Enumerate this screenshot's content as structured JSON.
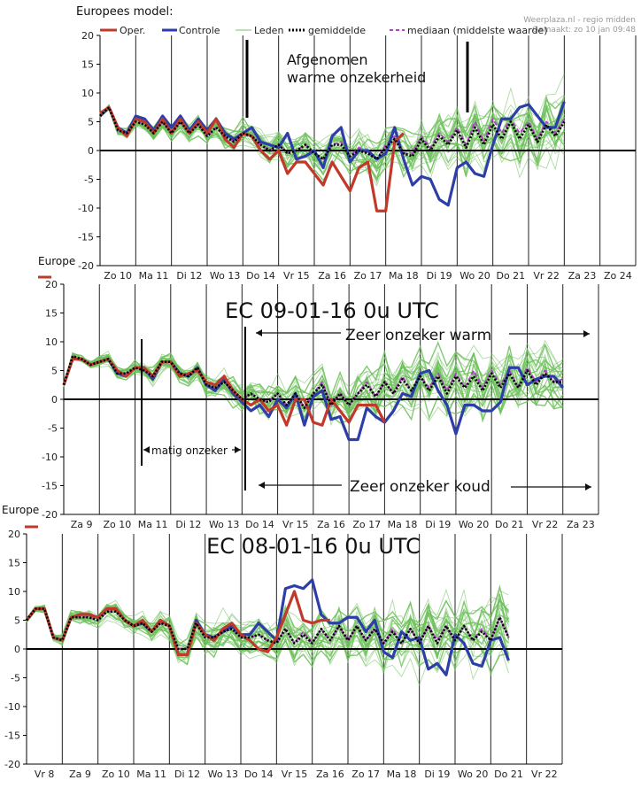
{
  "page": {
    "title": "Europees model:",
    "credit": "Weerplaza.nl - regio midden",
    "generated": "Gemaakt: zo 10 jan 09:48"
  },
  "legend": [
    {
      "label": "Oper.",
      "color": "#c0392b",
      "style": "thick"
    },
    {
      "label": "Controle",
      "color": "#2e3ea8",
      "style": "thick"
    },
    {
      "label": "Leden",
      "color": "#7cc26c",
      "style": "thin"
    },
    {
      "label": "gemiddelde",
      "color": "#000000",
      "style": "dotted"
    },
    {
      "label": "mediaan (middelste waarde)",
      "color": "#b040c8",
      "style": "dashed"
    }
  ],
  "colors": {
    "oper": "#c0392b",
    "controle": "#2e3ea8",
    "leden": "#6cbf5a",
    "gemiddelde": "#000000",
    "mediaan": "#b040c8",
    "grid": "#222222",
    "zero": "#000000"
  },
  "chart_data": [
    {
      "type": "line",
      "title": "",
      "panel_label": "Europees model:",
      "ylim": [
        -20,
        20
      ],
      "yticks": [
        20,
        15,
        10,
        5,
        0,
        -5,
        -10,
        -15,
        -20
      ],
      "x_labels": [
        "Zo 10",
        "Ma 11",
        "Di 12",
        "Wo 13",
        "Do 14",
        "Vr 15",
        "Za 16",
        "Zo 17",
        "Ma 18",
        "Di 19",
        "Wo 20",
        "Do 21",
        "Vr 22",
        "Za 23",
        "Zo 24"
      ],
      "x_first_label_day": 0,
      "num_days": 15,
      "annotations": [
        {
          "text": "Afgenomen"
        },
        {
          "text": "warme onzekerheid"
        }
      ],
      "series": [
        {
          "name": "Oper.",
          "values": [
            6.5,
            7.5,
            4,
            2.5,
            5.5,
            5,
            3,
            5.5,
            3,
            5.5,
            3,
            5,
            3,
            5.5,
            2,
            0.5,
            3,
            2.5,
            0,
            -1.5,
            0,
            -4,
            -2,
            -2,
            -4,
            -6,
            -2,
            -4.5,
            -7,
            -3,
            -2,
            -10.5,
            -10.5,
            1.5,
            3
          ]
        },
        {
          "name": "Controle",
          "values": [
            6,
            7.5,
            4,
            3,
            6,
            5.5,
            3.5,
            6,
            4,
            6,
            3.5,
            5.5,
            3.5,
            5.5,
            3,
            2,
            3,
            4,
            1.5,
            1,
            0.5,
            3,
            -1.5,
            -1,
            0,
            -3,
            2.5,
            4,
            -2,
            0,
            0,
            -1.5,
            -0.5,
            4,
            -1.5,
            -6,
            -4.5,
            -5,
            -8.5,
            -9.5,
            -3,
            -2,
            -4,
            -4.5,
            1,
            5.5,
            5.5,
            7.5,
            8,
            6,
            4,
            4,
            8.5
          ]
        },
        {
          "name": "gemiddelde",
          "values": [
            6,
            7.5,
            3.5,
            3,
            5,
            4.5,
            3,
            5,
            3,
            5,
            3,
            4.5,
            2.5,
            4,
            2.5,
            1.5,
            3,
            2.5,
            1,
            0,
            1,
            -0.5,
            0,
            1,
            -0.5,
            -1.5,
            1,
            1,
            -1,
            0,
            -0.5,
            -1.5,
            0.5,
            2,
            -0.5,
            -1,
            2,
            0,
            2.5,
            1,
            3.5,
            0.5,
            4,
            1,
            4.5,
            2,
            5,
            2,
            4.5,
            1.5,
            4.5,
            2.5,
            5
          ]
        },
        {
          "name": "mediaan (middelste waarde)",
          "values": [
            6,
            7.5,
            3.5,
            3,
            5,
            4.5,
            3,
            5,
            3,
            5,
            3,
            4.5,
            2.5,
            4,
            2.5,
            1.5,
            3,
            2.5,
            1,
            0,
            1,
            -0.5,
            0,
            1,
            -0.5,
            -1.5,
            1,
            1.5,
            -1,
            0.5,
            -0.5,
            -1.5,
            1,
            2.5,
            -0.5,
            -0.5,
            2.5,
            0.5,
            3,
            1.5,
            4,
            1,
            5,
            1.5,
            5.5,
            3,
            5.5,
            3,
            5,
            2,
            5,
            3,
            5.5
          ]
        }
      ]
    },
    {
      "type": "line",
      "title": "EC 09-01-16 0u UTC",
      "panel_label": "Europe",
      "ylim": [
        -20,
        20
      ],
      "yticks": [
        20,
        15,
        10,
        5,
        0,
        -5,
        -10,
        -15,
        -20
      ],
      "x_labels": [
        "Za 9",
        "Zo 10",
        "Ma 11",
        "Di 12",
        "Wo 13",
        "Do 14",
        "Vr 15",
        "Za 16",
        "Zo 17",
        "Ma 18",
        "Di 19",
        "Wo 20",
        "Do 21",
        "Vr 22",
        "Za 23"
      ],
      "x_first_label_day": 0,
      "num_days": 15,
      "annotations": [
        {
          "text": "Zeer onzeker warm"
        },
        {
          "text": "matig onzeker"
        },
        {
          "text": "Zeer onzeker koud"
        }
      ],
      "series": [
        {
          "name": "Oper.",
          "values": [
            2.5,
            7,
            7,
            6,
            6.5,
            7,
            5,
            4,
            5.5,
            5.5,
            4,
            6.5,
            6.5,
            4,
            4.5,
            5,
            3,
            2.5,
            4,
            1.5,
            0,
            -1,
            0,
            -2,
            -1,
            -4.5,
            0,
            0,
            -4,
            -4.5,
            0,
            -2,
            -4,
            -1,
            -1,
            -1,
            -4
          ]
        },
        {
          "name": "Controle",
          "values": [
            2.5,
            7,
            7,
            6,
            6.5,
            7,
            4.5,
            4,
            5.5,
            5.5,
            3.5,
            6.5,
            6.5,
            4.5,
            4,
            5.5,
            2.5,
            1.5,
            3.5,
            1,
            -0.5,
            -2,
            -1,
            -3,
            0,
            -1.5,
            1,
            -4.5,
            0.5,
            1.5,
            -3.5,
            -3,
            -7,
            -7,
            -1.5,
            -3,
            -4,
            -2,
            1,
            0.5,
            4.5,
            5,
            1.5,
            -1,
            -6,
            -1,
            -1,
            -2,
            -2,
            -0.5,
            5.5,
            5.5,
            2.5,
            3.5,
            4,
            4,
            2
          ]
        },
        {
          "name": "gemiddelde",
          "values": [
            2.5,
            7.5,
            7,
            6,
            6.5,
            7,
            4.5,
            4.5,
            5.5,
            5,
            4,
            6.5,
            6.5,
            4.5,
            4,
            5.5,
            2.5,
            2,
            3,
            1.5,
            0,
            1,
            0,
            -0.5,
            1,
            -1,
            1,
            -1.5,
            1,
            2.5,
            -1,
            1,
            -1,
            1,
            2.5,
            0.5,
            3,
            1,
            3.5,
            1.5,
            4,
            1.5,
            4,
            1,
            4,
            2,
            4,
            1.5,
            4.5,
            2,
            4.5,
            2,
            5,
            2.5,
            4.5,
            3,
            3
          ]
        },
        {
          "name": "mediaan (middelste waarde)",
          "values": [
            2.5,
            7.5,
            7,
            6,
            6.5,
            7,
            4.5,
            4.5,
            5.5,
            5,
            4,
            6.5,
            6.5,
            4.5,
            4,
            5.5,
            2.5,
            2,
            3,
            1.5,
            0,
            1,
            0,
            -0.5,
            1,
            -1,
            1,
            -1.5,
            1,
            3,
            -1,
            1,
            -1,
            1,
            3,
            0.5,
            3,
            1,
            4,
            1.5,
            4,
            2,
            4.5,
            1.5,
            4.5,
            2,
            5,
            2,
            5,
            2.5,
            5,
            2,
            5.5,
            3,
            5,
            3,
            3.5
          ]
        }
      ]
    },
    {
      "type": "line",
      "title": "EC 08-01-16 0u UTC",
      "panel_label": "Europe",
      "ylim": [
        -20,
        20
      ],
      "yticks": [
        20,
        15,
        10,
        5,
        0,
        -5,
        -10,
        -15,
        -20
      ],
      "x_labels": [
        "Vr 8",
        "Za 9",
        "Zo 10",
        "Ma 11",
        "Di 12",
        "Wo 13",
        "Do 14",
        "Vr 15",
        "Za 16",
        "Zo 17",
        "Ma 18",
        "Di 19",
        "Wo 20",
        "Do 21",
        "Vr 22"
      ],
      "x_first_label_day": 0,
      "num_days": 15,
      "annotations": [],
      "series": [
        {
          "name": "Oper.",
          "values": [
            5,
            7,
            7,
            2,
            1.5,
            5.5,
            6,
            6,
            5.5,
            7,
            7,
            5,
            4,
            5,
            3,
            5,
            4,
            -1,
            -1,
            4.5,
            2.5,
            1.5,
            3.5,
            4.5,
            2.5,
            1.5,
            0,
            -0.5,
            2,
            6,
            10,
            5,
            4.5,
            5,
            5
          ]
        },
        {
          "name": "Controle",
          "values": [
            5,
            7,
            7,
            2,
            1.5,
            5.5,
            6,
            6,
            5.5,
            7,
            7,
            5,
            4,
            4.5,
            3,
            5,
            4,
            -1,
            -1,
            5,
            2.5,
            2,
            3,
            4,
            2.5,
            2.5,
            4.5,
            3,
            1.5,
            10.5,
            11,
            10.5,
            12,
            6,
            4.5,
            4.5,
            5.5,
            5.5,
            3,
            5,
            -0.5,
            -1.5,
            3,
            1.5,
            2,
            -3.5,
            -2.5,
            -4.5,
            2.5,
            1,
            -2.5,
            -3,
            1.5,
            2,
            -2
          ]
        },
        {
          "name": "gemiddelde",
          "values": [
            5,
            7,
            7,
            2,
            1.5,
            5.5,
            5.5,
            5.5,
            5,
            6.5,
            6.5,
            5,
            4,
            4.5,
            3,
            4.5,
            4,
            0,
            0,
            4.5,
            2,
            2,
            3,
            3.5,
            2,
            2,
            2.5,
            1.5,
            1,
            3.5,
            1,
            2.5,
            1,
            3.5,
            1.5,
            4,
            1.5,
            4,
            1.5,
            3.5,
            1,
            3,
            1,
            3.5,
            1,
            4,
            1,
            4,
            1.5,
            4,
            1.5,
            3,
            1.5,
            5.5,
            2
          ]
        },
        {
          "name": "mediaan (middelste waarde)",
          "values": [
            5,
            7,
            7,
            2,
            1.5,
            5.5,
            5.5,
            5.5,
            5,
            6.5,
            6.5,
            5,
            4,
            4.5,
            3,
            4.5,
            4,
            0,
            0,
            4.5,
            2,
            2,
            3,
            3.5,
            2,
            2,
            2.5,
            1.5,
            1,
            3.5,
            1,
            3,
            1,
            3.5,
            1.5,
            4,
            1.5,
            4,
            1.5,
            3.5,
            1,
            3.5,
            1,
            3.5,
            1,
            4,
            1.5,
            4,
            1.5,
            4,
            1.5,
            3.5,
            1.5,
            5.5,
            2
          ]
        }
      ]
    }
  ]
}
